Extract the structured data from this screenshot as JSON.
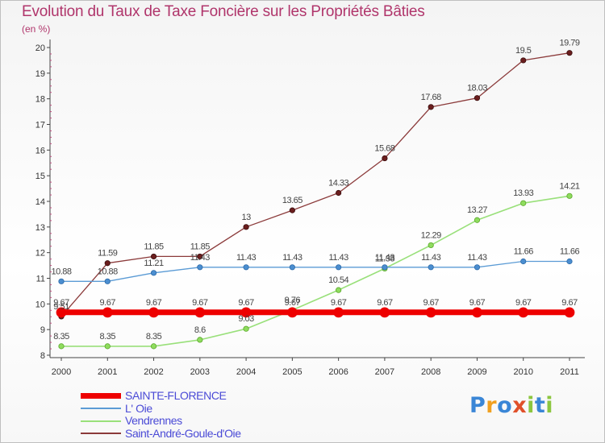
{
  "title": "Evolution du Taux de Taxe Foncière sur les Propriétés Bâties",
  "subtitle": "(en %)",
  "logo": {
    "text": "Proxiti"
  },
  "chart_data": {
    "type": "line",
    "title": "Evolution du Taux de Taxe Foncière sur les Propriétés Bâties",
    "ylabel": "(en %)",
    "xlabel": "",
    "ylim": [
      8,
      20
    ],
    "yticks": [
      "8",
      "9",
      "10",
      "11",
      "12",
      "13",
      "14",
      "15",
      "16",
      "17",
      "18",
      "19",
      "20"
    ],
    "x": [
      "2000",
      "2001",
      "2002",
      "2003",
      "2004",
      "2005",
      "2006",
      "2007",
      "2008",
      "2009",
      "2010",
      "2011"
    ],
    "grid": false,
    "legend_position": "bottom-left",
    "series": [
      {
        "name": "SAINTE-FLORENCE",
        "color": "#ee0000",
        "values": [
          9.67,
          9.67,
          9.67,
          9.67,
          9.67,
          9.67,
          9.67,
          9.67,
          9.67,
          9.67,
          9.67,
          9.67
        ],
        "labels": [
          "9.67",
          "9.67",
          "9.67",
          "9.67",
          "9.67",
          "9.67",
          "9.67",
          "9.67",
          "9.67",
          "9.67",
          "9.67",
          "9.67"
        ]
      },
      {
        "name": "L' Oie",
        "color": "#5b9bd5",
        "values": [
          10.88,
          10.88,
          11.21,
          11.43,
          11.43,
          11.43,
          11.43,
          11.43,
          11.43,
          11.43,
          11.66,
          11.66
        ],
        "labels": [
          "10.88",
          "10.88",
          "11.21",
          "11.43",
          "11.43",
          "11.43",
          "11.43",
          "11.43",
          "11.43",
          "11.43",
          "11.66",
          "11.66"
        ]
      },
      {
        "name": "Vendrennes",
        "color": "#99e07a",
        "values": [
          8.35,
          8.35,
          8.35,
          8.6,
          9.03,
          9.76,
          10.54,
          11.38,
          12.29,
          13.27,
          13.93,
          14.21
        ],
        "labels": [
          "8.35",
          "8.35",
          "8.35",
          "8.6",
          "9.03",
          "9.76",
          "10.54",
          "11.38",
          "12.29",
          "13.27",
          "13.93",
          "14.21"
        ]
      },
      {
        "name": "Saint-André-Goule-d'Oie",
        "color": "#8b3a3a",
        "values": [
          9.51,
          11.59,
          11.85,
          11.85,
          13,
          13.65,
          14.33,
          15.68,
          17.68,
          18.03,
          19.5,
          19.79
        ],
        "labels": [
          "9.51",
          "11.59",
          "11.85",
          "11.85",
          "13",
          "13.65",
          "14.33",
          "15.68",
          "17.68",
          "18.03",
          "19.5",
          "19.79"
        ]
      }
    ]
  }
}
